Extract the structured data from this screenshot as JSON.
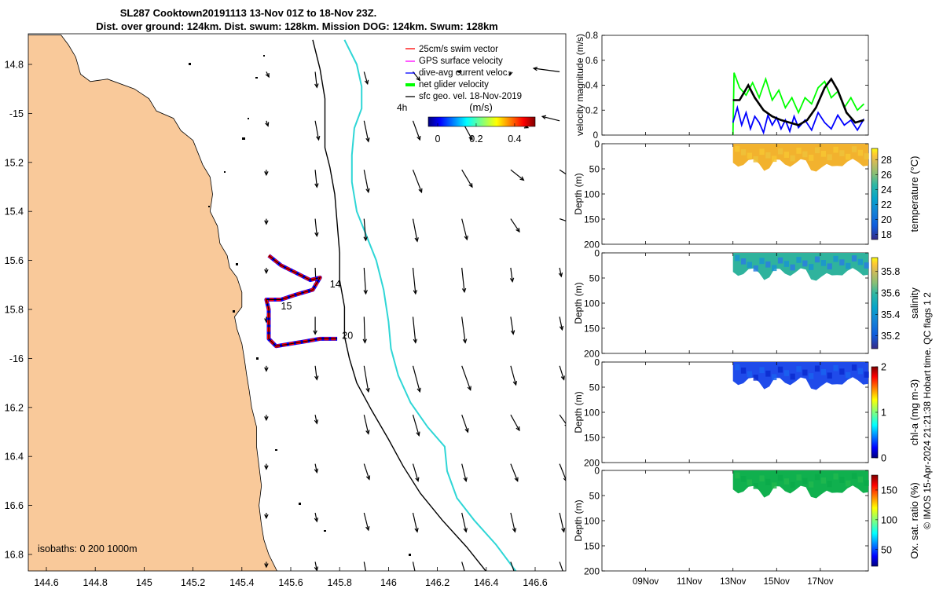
{
  "header": {
    "line1": "SL287 Cooktown20191113 13-Nov 01Z to 18-Nov 23Z.",
    "line2": "Dist. over ground: 124km. Dist. swum: 128km. Mission DOG: 124km. Swum: 128km"
  },
  "colors": {
    "land": "#F9C99A",
    "isobath_200": "#000000",
    "isobath_1000": "#2FD6D6",
    "track_red": "#FF0000",
    "track_blue": "#0000FF",
    "green_line": "#00FF00",
    "black_line": "#000000"
  },
  "chart_data": [
    {
      "id": "map",
      "type": "scatter",
      "xlim": [
        146.78,
        144.5
      ],
      "ylim": [
        -16.9,
        -14.7
      ],
      "x_ticks": [
        144.6,
        144.8,
        145,
        145.2,
        145.4,
        145.6,
        145.8,
        146,
        146.2,
        146.4,
        146.6
      ],
      "x_tick_labels": [
        "144.6",
        "144.8",
        "145",
        "145.2",
        "145.4",
        "145.6",
        "145.8",
        "146",
        "146.2",
        "146.4",
        "146.6"
      ],
      "y_ticks": [
        -14.8,
        -15,
        -15.2,
        -15.4,
        -15.6,
        -15.8,
        -16,
        -16.2,
        -16.4,
        -16.6,
        -16.8
      ],
      "y_tick_labels": [
        "14.8",
        "-15",
        "15.2",
        "15.4",
        "15.6",
        "15.8",
        "-16",
        "16.2",
        "16.4",
        "16.6",
        "16.8"
      ],
      "legend": {
        "position": "top-right",
        "entries": [
          {
            "label": "25cm/s swim vector",
            "color": "#FF0000"
          },
          {
            "label": "GPS surface velocity",
            "color": "#FF00FF"
          },
          {
            "label": "dive-avg current veloc.",
            "color": "#0000FF"
          },
          {
            "label": "net glider velocity",
            "color": "#00FF00"
          },
          {
            "label": "sfc geo. vel. 18-Nov-2019",
            "color": "#000000"
          }
        ]
      },
      "speed_colorbar": {
        "label": "(m/s)",
        "ticks": [
          "0",
          "0.2",
          "0.4"
        ],
        "range": [
          0,
          0.5
        ],
        "vector_scale_label": "4h"
      },
      "isobaths_label": "isobaths: 0  200  1000m",
      "day_labels": [
        {
          "text": "14",
          "lon": 145.76,
          "lat": -15.71
        },
        {
          "text": "15",
          "lon": 145.56,
          "lat": -15.8
        },
        {
          "text": "20",
          "lon": 145.81,
          "lat": -15.92
        }
      ],
      "track": [
        [
          145.51,
          -15.58
        ],
        [
          145.56,
          -15.62
        ],
        [
          145.62,
          -15.65
        ],
        [
          145.68,
          -15.68
        ],
        [
          145.72,
          -15.67
        ],
        [
          145.69,
          -15.72
        ],
        [
          145.62,
          -15.74
        ],
        [
          145.56,
          -15.76
        ],
        [
          145.5,
          -15.76
        ],
        [
          145.51,
          -15.8
        ],
        [
          145.51,
          -15.86
        ],
        [
          145.51,
          -15.92
        ],
        [
          145.54,
          -15.95
        ],
        [
          145.6,
          -15.94
        ],
        [
          145.66,
          -15.93
        ],
        [
          145.72,
          -15.92
        ],
        [
          145.79,
          -15.92
        ]
      ],
      "coastline": [
        [
          144.5,
          -14.68
        ],
        [
          144.66,
          -14.68
        ],
        [
          144.69,
          -14.72
        ],
        [
          144.72,
          -14.77
        ],
        [
          144.74,
          -14.84
        ],
        [
          144.78,
          -14.87
        ],
        [
          144.85,
          -14.86
        ],
        [
          144.96,
          -14.9
        ],
        [
          145.02,
          -14.94
        ],
        [
          145.05,
          -14.99
        ],
        [
          145.12,
          -15.02
        ],
        [
          145.15,
          -15.07
        ],
        [
          145.2,
          -15.11
        ],
        [
          145.22,
          -15.16
        ],
        [
          145.24,
          -15.21
        ],
        [
          145.27,
          -15.26
        ],
        [
          145.28,
          -15.33
        ],
        [
          145.27,
          -15.4
        ],
        [
          145.3,
          -15.46
        ],
        [
          145.31,
          -15.53
        ],
        [
          145.34,
          -15.58
        ],
        [
          145.35,
          -15.63
        ],
        [
          145.38,
          -15.67
        ],
        [
          145.4,
          -15.73
        ],
        [
          145.4,
          -15.79
        ],
        [
          145.37,
          -15.83
        ],
        [
          145.38,
          -15.88
        ],
        [
          145.4,
          -15.94
        ],
        [
          145.41,
          -16.0
        ],
        [
          145.42,
          -16.07
        ],
        [
          145.43,
          -16.13
        ],
        [
          145.44,
          -16.2
        ],
        [
          145.46,
          -16.28
        ],
        [
          145.46,
          -16.36
        ],
        [
          145.47,
          -16.44
        ],
        [
          145.48,
          -16.52
        ],
        [
          145.47,
          -16.6
        ],
        [
          145.48,
          -16.68
        ],
        [
          145.49,
          -16.74
        ],
        [
          145.51,
          -16.8
        ],
        [
          145.54,
          -16.86
        ],
        [
          145.56,
          -16.9
        ],
        [
          144.5,
          -16.9
        ]
      ],
      "isobath_200": [
        [
          145.69,
          -14.7
        ],
        [
          145.72,
          -14.82
        ],
        [
          145.74,
          -14.94
        ],
        [
          145.74,
          -15.06
        ],
        [
          145.74,
          -15.14
        ],
        [
          145.76,
          -15.22
        ],
        [
          145.78,
          -15.33
        ],
        [
          145.79,
          -15.45
        ],
        [
          145.8,
          -15.57
        ],
        [
          145.8,
          -15.68
        ],
        [
          145.82,
          -15.79
        ],
        [
          145.82,
          -15.91
        ],
        [
          145.84,
          -16.0
        ],
        [
          145.87,
          -16.1
        ],
        [
          145.93,
          -16.21
        ],
        [
          146.0,
          -16.33
        ],
        [
          146.06,
          -16.44
        ],
        [
          146.13,
          -16.55
        ],
        [
          146.22,
          -16.66
        ],
        [
          146.32,
          -16.77
        ],
        [
          146.4,
          -16.87
        ]
      ],
      "isobath_1000": [
        [
          145.82,
          -14.7
        ],
        [
          145.87,
          -14.8
        ],
        [
          145.89,
          -14.89
        ],
        [
          145.89,
          -14.98
        ],
        [
          145.86,
          -15.06
        ],
        [
          145.85,
          -15.17
        ],
        [
          145.85,
          -15.28
        ],
        [
          145.87,
          -15.4
        ],
        [
          145.91,
          -15.5
        ],
        [
          145.95,
          -15.6
        ],
        [
          145.98,
          -15.72
        ],
        [
          146.0,
          -15.85
        ],
        [
          146.01,
          -15.96
        ],
        [
          146.04,
          -16.07
        ],
        [
          146.09,
          -16.18
        ],
        [
          146.16,
          -16.28
        ],
        [
          146.23,
          -16.36
        ],
        [
          146.24,
          -16.46
        ],
        [
          146.28,
          -16.57
        ],
        [
          146.35,
          -16.66
        ],
        [
          146.44,
          -16.76
        ],
        [
          146.53,
          -16.88
        ]
      ],
      "vector_grid": {
        "lons": [
          145.5,
          145.7,
          145.9,
          146.1,
          146.3,
          146.5,
          146.7
        ],
        "lats": [
          -14.83,
          -15.03,
          -15.23,
          -15.43,
          -15.63,
          -15.83,
          -16.03,
          -16.23,
          -16.43,
          -16.63,
          -16.83
        ],
        "u": [
          [
            0.03,
            0.02,
            0.04,
            0.08,
            -0.05,
            -0.01,
            -0.3
          ],
          [
            0.02,
            0.04,
            0.05,
            0.08,
            0.12,
            0.2,
            -0.2
          ],
          [
            0.0,
            0.02,
            0.05,
            0.1,
            0.12,
            0.15,
            0.12
          ],
          [
            0.0,
            0.02,
            0.02,
            0.05,
            0.06,
            0.1,
            0.15
          ],
          [
            0.0,
            0.01,
            0.02,
            0.03,
            0.03,
            0.02,
            0.02
          ],
          [
            0.0,
            0.0,
            0.01,
            0.03,
            0.04,
            0.03,
            0.03
          ],
          [
            0.0,
            0.02,
            0.05,
            0.08,
            0.1,
            0.06,
            0.05
          ],
          [
            0.0,
            0.02,
            0.05,
            0.07,
            0.07,
            0.1,
            0.1
          ],
          [
            0.0,
            0.02,
            0.06,
            0.06,
            0.05,
            0.08,
            0.08
          ],
          [
            0.0,
            0.02,
            0.05,
            0.05,
            0.05,
            0.05,
            0.05
          ],
          [
            0.0,
            0.02,
            0.04,
            0.05,
            0.07,
            0.07,
            0.07
          ]
        ],
        "v": [
          [
            -0.06,
            -0.18,
            -0.14,
            -0.1,
            0.0,
            -0.04,
            0.04
          ],
          [
            -0.06,
            -0.22,
            -0.24,
            -0.22,
            -0.22,
            -0.08,
            0.05
          ],
          [
            -0.06,
            -0.2,
            -0.26,
            -0.26,
            -0.2,
            -0.12,
            -0.08
          ],
          [
            -0.06,
            -0.2,
            -0.25,
            -0.26,
            -0.24,
            -0.15,
            -0.05
          ],
          [
            -0.06,
            -0.22,
            -0.3,
            -0.3,
            -0.28,
            -0.16,
            -0.1
          ],
          [
            -0.06,
            -0.2,
            -0.3,
            -0.3,
            -0.3,
            -0.2,
            -0.15
          ],
          [
            -0.06,
            -0.16,
            -0.3,
            -0.3,
            -0.28,
            -0.22,
            -0.16
          ],
          [
            -0.06,
            -0.1,
            -0.22,
            -0.24,
            -0.2,
            -0.18,
            -0.14
          ],
          [
            -0.06,
            -0.1,
            -0.18,
            -0.2,
            -0.2,
            -0.2,
            -0.2
          ],
          [
            -0.06,
            -0.1,
            -0.2,
            -0.22,
            -0.22,
            -0.22,
            -0.22
          ],
          [
            -0.06,
            -0.1,
            -0.22,
            -0.24,
            -0.24,
            -0.2,
            -0.2
          ]
        ]
      }
    },
    {
      "id": "velocity",
      "type": "line",
      "ylabel": "velocity magnitude (m/s)",
      "ylim": [
        0,
        0.8
      ],
      "y_ticks": [
        0,
        0.2,
        0.4,
        0.6,
        0.8
      ],
      "x_ticks_days": [
        9,
        11,
        13,
        15,
        17
      ],
      "x_tick_labels": [
        "09Nov",
        "11Nov",
        "13Nov",
        "15Nov",
        "17Nov"
      ],
      "xlim_days": [
        7,
        19.2
      ],
      "series": [
        {
          "color": "#00FF00",
          "x": [
            13.0,
            13.05,
            13.3,
            13.6,
            13.9,
            14.2,
            14.5,
            14.8,
            15.1,
            15.4,
            15.7,
            16.0,
            16.3,
            16.6,
            16.9,
            17.2,
            17.5,
            17.8,
            18.1,
            18.4,
            18.7,
            19.0
          ],
          "y": [
            0.0,
            0.5,
            0.38,
            0.32,
            0.42,
            0.3,
            0.45,
            0.28,
            0.36,
            0.22,
            0.3,
            0.18,
            0.3,
            0.25,
            0.38,
            0.43,
            0.3,
            0.35,
            0.22,
            0.3,
            0.2,
            0.25
          ]
        },
        {
          "color": "#0000FF",
          "x": [
            13.0,
            13.2,
            13.4,
            13.6,
            13.8,
            14.0,
            14.2,
            14.4,
            14.6,
            14.8,
            15.0,
            15.2,
            15.4,
            15.6,
            15.8,
            16.0,
            16.3,
            16.6,
            16.9,
            17.2,
            17.5,
            17.8,
            18.1,
            18.4,
            18.7,
            19.0
          ],
          "y": [
            0.1,
            0.22,
            0.08,
            0.18,
            0.05,
            0.15,
            0.1,
            0.02,
            0.16,
            0.08,
            0.14,
            0.05,
            0.12,
            0.03,
            0.15,
            0.06,
            0.12,
            0.04,
            0.18,
            0.1,
            0.05,
            0.16,
            0.08,
            0.12,
            0.04,
            0.13
          ]
        },
        {
          "color": "#000000",
          "x": [
            13.0,
            13.3,
            13.7,
            14.0,
            14.4,
            14.8,
            15.2,
            15.6,
            16.0,
            16.4,
            16.8,
            17.2,
            17.5,
            17.8,
            18.2,
            18.6,
            19.0
          ],
          "y": [
            0.28,
            0.28,
            0.4,
            0.3,
            0.2,
            0.15,
            0.12,
            0.1,
            0.08,
            0.12,
            0.22,
            0.38,
            0.45,
            0.36,
            0.18,
            0.1,
            0.12
          ]
        }
      ]
    },
    {
      "id": "temperature",
      "type": "heatmap",
      "ylabel": "Depth (m)",
      "ylim": [
        0,
        200
      ],
      "y_ticks": [
        0,
        50,
        100,
        150,
        200
      ],
      "cbar_label": "temperature (°C)",
      "cbar_ticks": [
        "28",
        "26",
        "24",
        "22",
        "20",
        "18"
      ],
      "cbar_range": [
        17.3,
        29.5
      ],
      "value_range": [
        26,
        28
      ]
    },
    {
      "id": "salinity",
      "type": "heatmap",
      "ylabel": "Depth (m)",
      "ylim": [
        0,
        200
      ],
      "y_ticks": [
        0,
        50,
        100,
        150,
        200
      ],
      "cbar_label": "salinity",
      "cbar_ticks": [
        "35.8",
        "35.6",
        "35.4",
        "35.2"
      ],
      "cbar_range": [
        35.08,
        35.93
      ],
      "value_range": [
        35.2,
        35.6
      ]
    },
    {
      "id": "chla",
      "type": "heatmap",
      "ylabel": "Depth (m)",
      "ylim": [
        0,
        200
      ],
      "y_ticks": [
        0,
        50,
        100,
        150,
        200
      ],
      "cbar_label": "chl-a (mg m-3)",
      "cbar_ticks": [
        "2",
        "1",
        "0"
      ],
      "cbar_range": [
        0,
        2
      ],
      "value_range": [
        0,
        0.6
      ]
    },
    {
      "id": "oxygen",
      "type": "heatmap",
      "ylabel": "Depth (m)",
      "ylim": [
        0,
        200
      ],
      "y_ticks": [
        0,
        50,
        100,
        150,
        200
      ],
      "cbar_label": "Ox. sat. ratio (%)",
      "cbar_ticks": [
        "150",
        "100",
        "50"
      ],
      "cbar_range": [
        22,
        175
      ],
      "value_range": [
        105,
        110
      ]
    }
  ],
  "side_note": "© IMOS 15-Apr-2024 21:21:38 Hobart time. QC flags 1  2"
}
